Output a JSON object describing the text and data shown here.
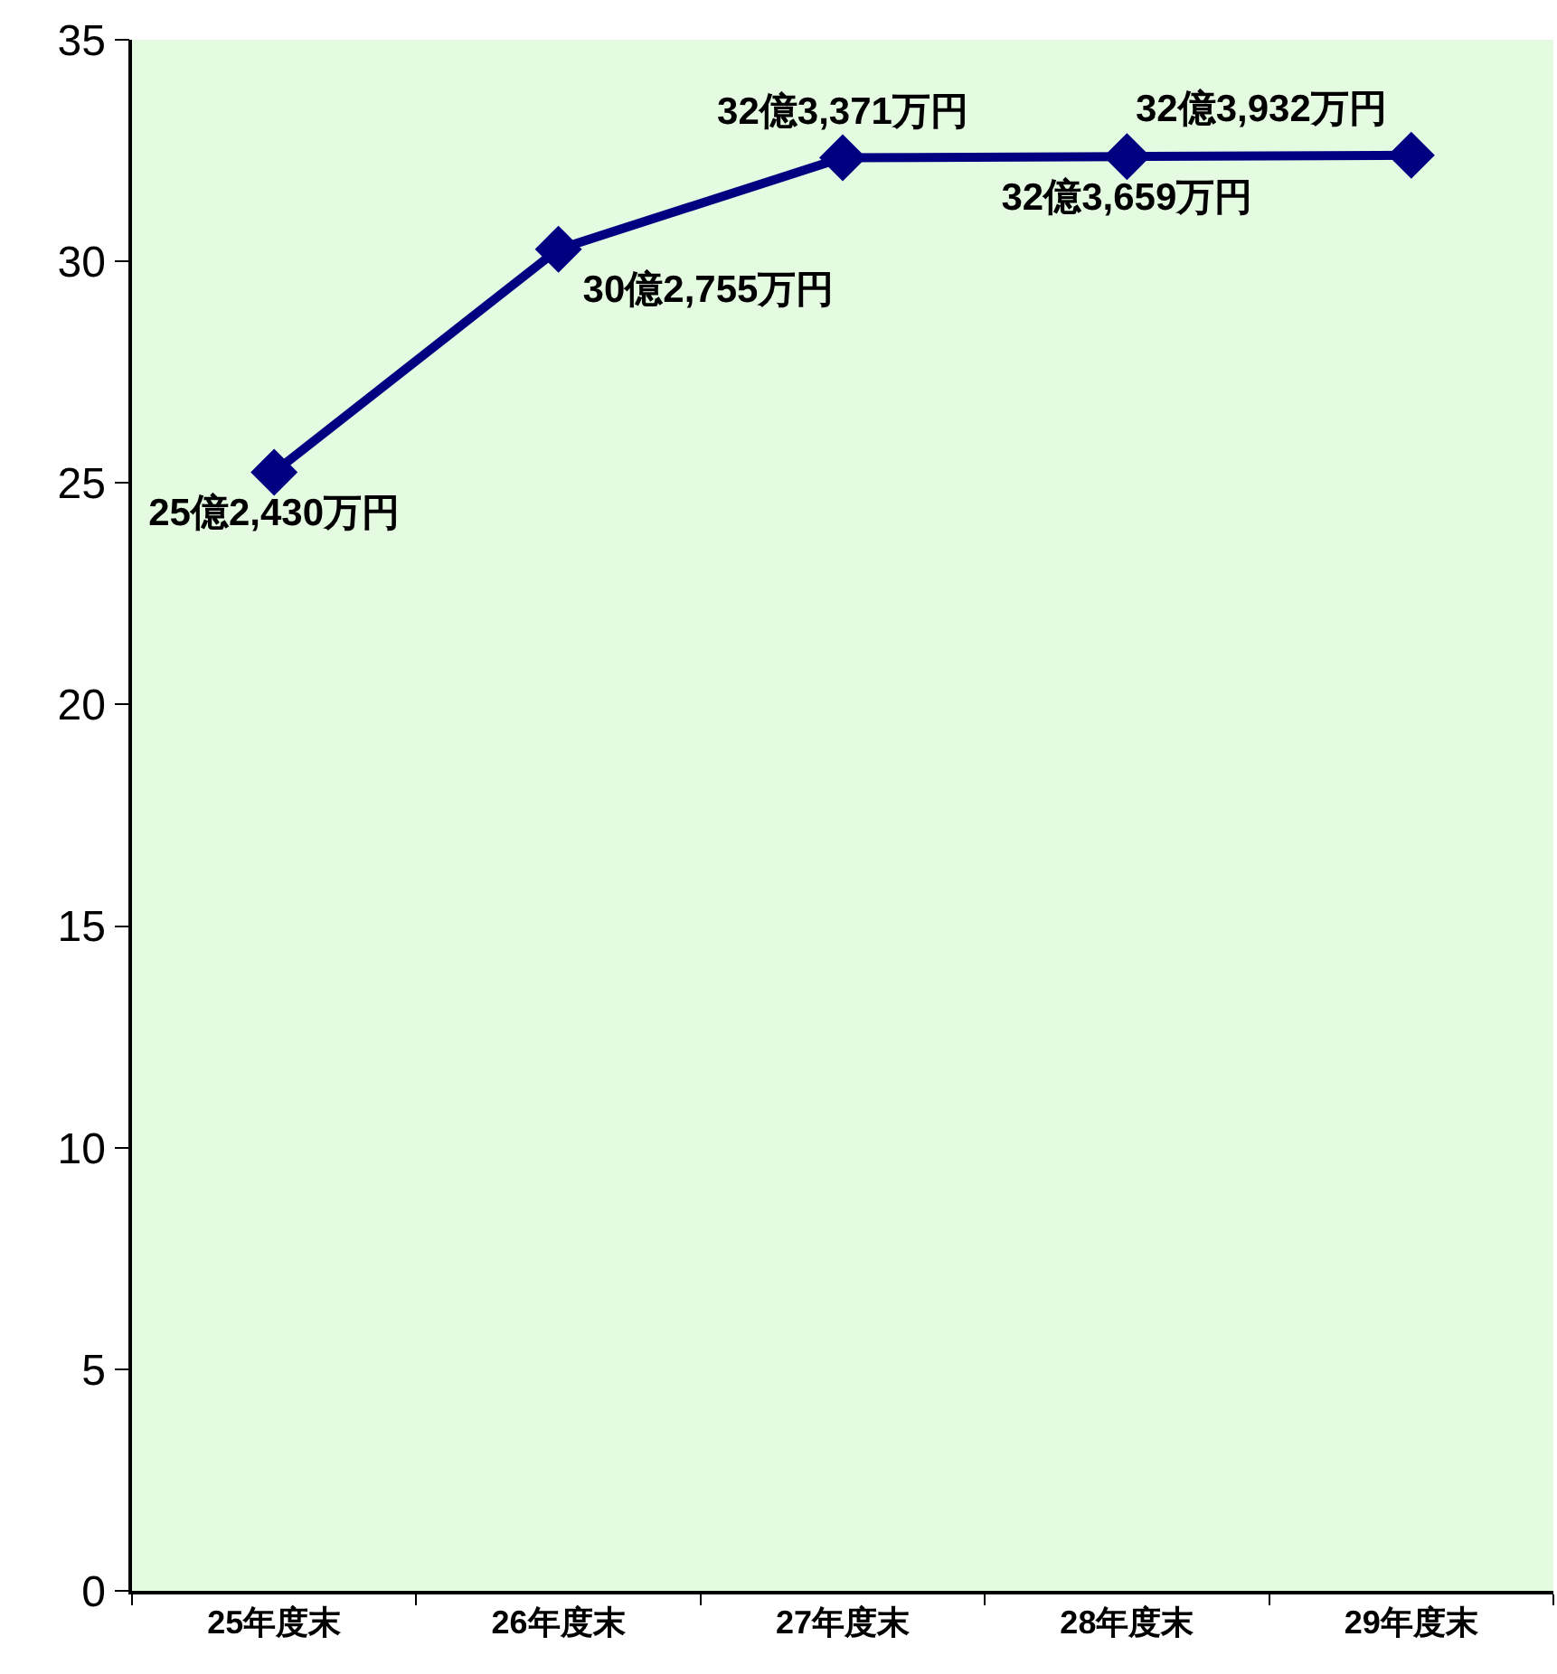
{
  "chart_data": {
    "type": "line",
    "categories": [
      "25年度末",
      "26年度末",
      "27年度末",
      "28年度末",
      "29年度末"
    ],
    "series": [
      {
        "color": "#000080",
        "values": [
          25.243,
          30.2755,
          32.3371,
          32.3659,
          32.3932
        ],
        "value_labels": [
          "25億2,430万円",
          "30億2,755万円",
          "32億3,371万円",
          "32億3,659万円",
          "32億3,932万円"
        ]
      }
    ],
    "ylim": [
      0,
      35
    ],
    "yticks": [
      0,
      5,
      10,
      15,
      20,
      25,
      30,
      35
    ],
    "marker": "diamond",
    "line_style": "solid"
  }
}
